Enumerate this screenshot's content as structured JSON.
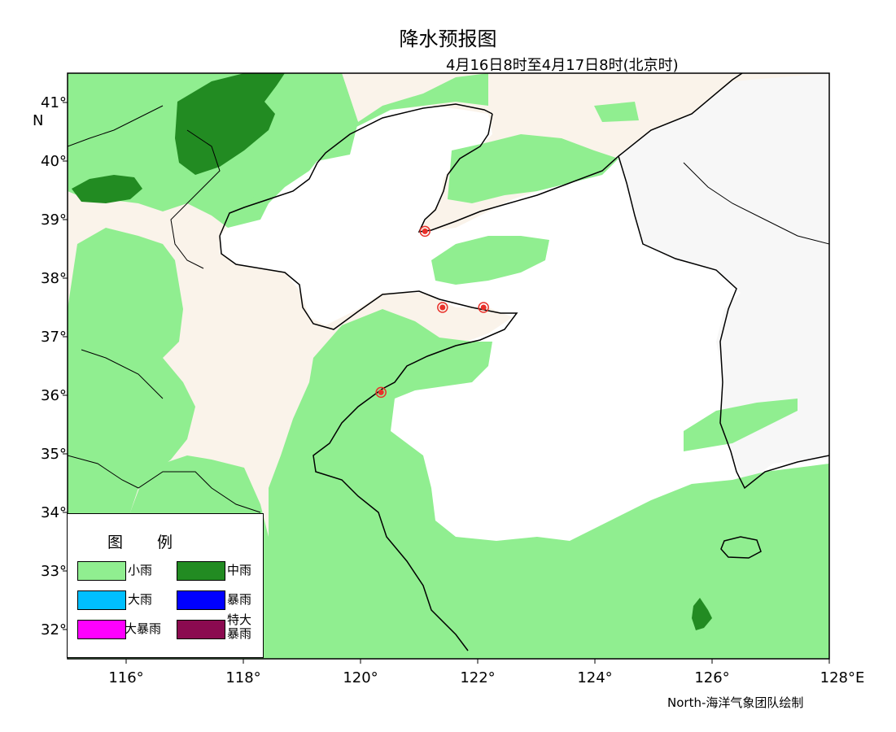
{
  "title": "降水预报图",
  "subtitle": "4月16日8时至4月17日8时(北京时)",
  "credit": "North-海洋气象团队绘制",
  "map": {
    "lon_range": [
      115,
      128
    ],
    "lat_range": [
      31.5,
      41.5
    ],
    "x_ticks": [
      "116°",
      "118°",
      "120°",
      "122°",
      "124°",
      "126°",
      "128°E"
    ],
    "y_ticks": [
      "41°\nN",
      "40°",
      "39°",
      "38°",
      "37°",
      "36°",
      "35°",
      "34°",
      "33°",
      "32°"
    ],
    "x_tick_values": [
      116,
      118,
      120,
      122,
      124,
      126,
      128
    ],
    "y_tick_values": [
      41,
      40,
      39,
      38,
      37,
      36,
      35,
      34,
      33,
      32
    ],
    "colors": {
      "land": "#faf3ea",
      "sea": "#ffffff",
      "korea": "#f7f7f7",
      "light_rain": "#90ee90",
      "moderate_rain": "#228b22",
      "coast": "#000000",
      "station": "#e8302a"
    },
    "stations": [
      {
        "lon": 121.1,
        "lat": 38.8
      },
      {
        "lon": 121.4,
        "lat": 37.5
      },
      {
        "lon": 122.1,
        "lat": 37.5
      },
      {
        "lon": 120.35,
        "lat": 36.05
      }
    ]
  },
  "legend": {
    "title": "图 例",
    "items": [
      {
        "label": "小雨",
        "color": "#90ee90"
      },
      {
        "label": "中雨",
        "color": "#228b22"
      },
      {
        "label": "大雨",
        "color": "#00bfff"
      },
      {
        "label": "暴雨",
        "color": "#0000ff"
      },
      {
        "label": "大暴雨",
        "color": "#ff00ff"
      },
      {
        "label": "特大\n暴雨",
        "color": "#8b0a50"
      }
    ]
  }
}
